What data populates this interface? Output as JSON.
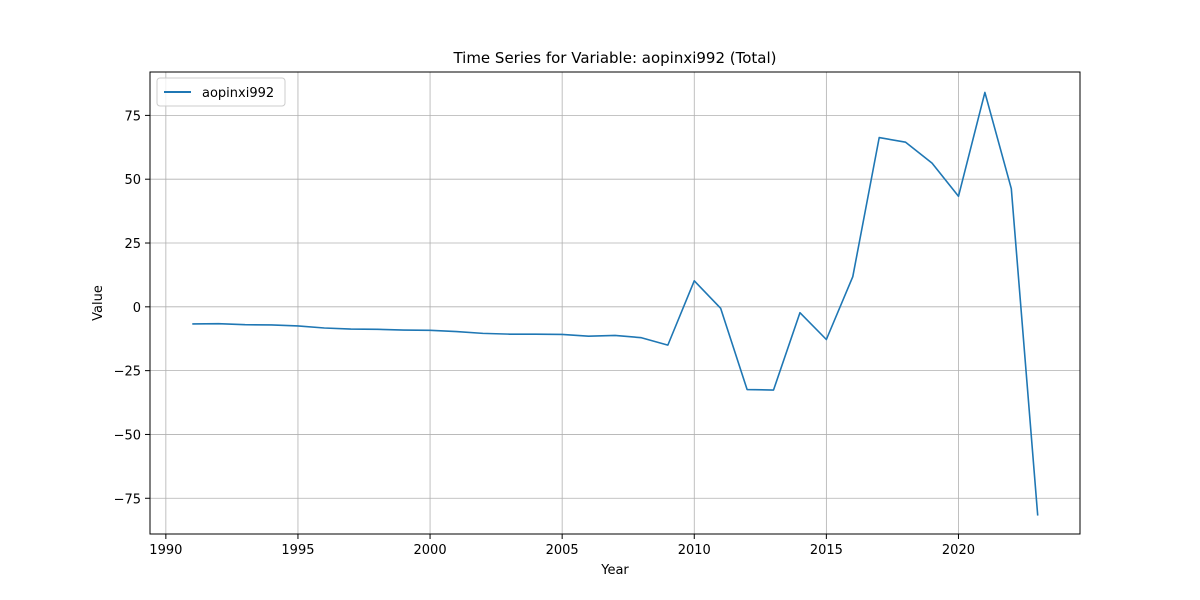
{
  "chart_data": {
    "type": "line",
    "title": "Time Series for Variable: aopinxi992 (Total)",
    "xlabel": "Year",
    "ylabel": "Value",
    "xlim": [
      1989.4,
      2024.6
    ],
    "ylim": [
      -89,
      92
    ],
    "x_ticks": [
      1990,
      1995,
      2000,
      2005,
      2010,
      2015,
      2020
    ],
    "y_ticks": [
      75,
      50,
      25,
      0,
      -25,
      -50,
      -75
    ],
    "y_tick_labels": [
      "75",
      "50",
      "25",
      "0",
      "−25",
      "−50",
      "−75"
    ],
    "grid": true,
    "legend_position": "top-left",
    "series": [
      {
        "name": "aopinxi992",
        "color": "#1f77b4",
        "x": [
          1991,
          1992,
          1993,
          1994,
          1995,
          1996,
          1997,
          1998,
          1999,
          2000,
          2001,
          2002,
          2003,
          2004,
          2005,
          2006,
          2007,
          2008,
          2009,
          2010,
          2011,
          2012,
          2013,
          2014,
          2015,
          2016,
          2017,
          2018,
          2019,
          2020,
          2021,
          2022,
          2023
        ],
        "y": [
          -6.7,
          -6.6,
          -7.0,
          -7.1,
          -7.5,
          -8.3,
          -8.7,
          -8.8,
          -9.1,
          -9.2,
          -9.7,
          -10.4,
          -10.7,
          -10.7,
          -10.8,
          -11.5,
          -11.2,
          -12.1,
          -15.0,
          10.2,
          -0.6,
          -32.4,
          -32.6,
          -2.3,
          -12.8,
          11.8,
          66.3,
          64.5,
          56.3,
          43.3,
          84.0,
          46.3,
          -81.8
        ]
      }
    ]
  }
}
